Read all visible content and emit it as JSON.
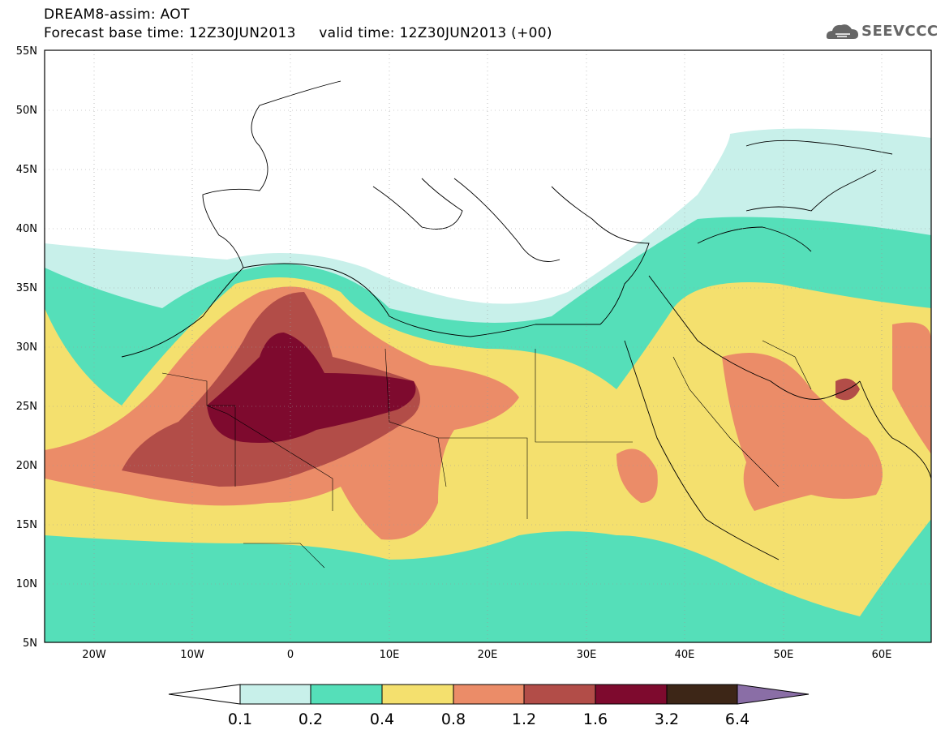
{
  "header": {
    "line1": "DREAM8-assim: AOT",
    "line2": "Forecast base time: 12Z30JUN2013     valid time: 12Z30JUN2013 (+00)"
  },
  "logo": {
    "text": "SEEVCCC",
    "icon": "cloud-icon"
  },
  "axes": {
    "lat_labels": [
      "55N",
      "50N",
      "45N",
      "40N",
      "35N",
      "30N",
      "25N",
      "20N",
      "15N",
      "10N",
      "5N"
    ],
    "lon_labels": [
      "20W",
      "10W",
      "0",
      "10E",
      "20E",
      "30E",
      "40E",
      "50E",
      "60E"
    ]
  },
  "colorbar": {
    "labels": [
      "0.1",
      "0.2",
      "0.4",
      "0.8",
      "1.2",
      "1.6",
      "3.2",
      "6.4"
    ],
    "colors": [
      "#ffffff",
      "#c8f0ea",
      "#55dfb9",
      "#f4e06e",
      "#eb8c68",
      "#b24d48",
      "#7e0a2e",
      "#3d2617",
      "#8a6ea6"
    ]
  }
}
